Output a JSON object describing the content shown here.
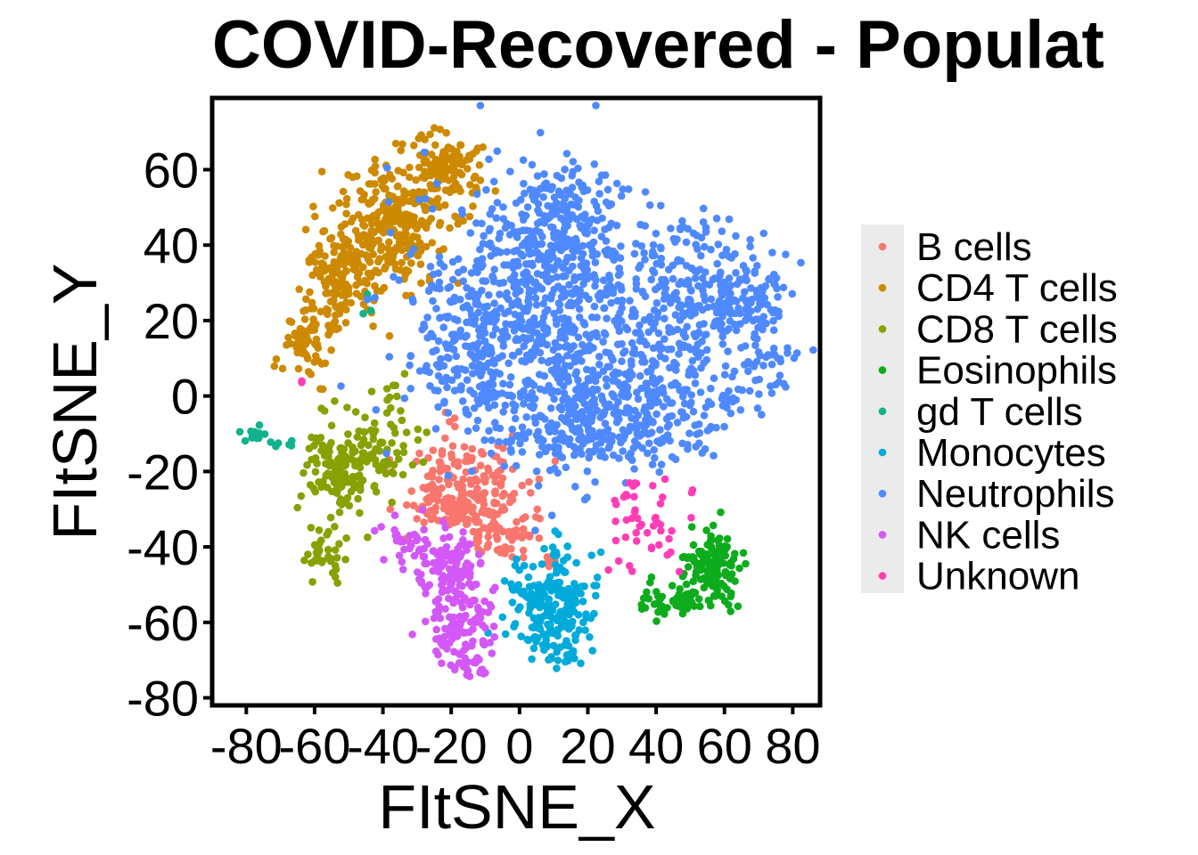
{
  "chart_data": {
    "type": "scatter",
    "title": "COVID-Recovered - Populat",
    "xlabel": "FItSNE_X",
    "ylabel": "FItSNE_Y",
    "xlim": [
      -90,
      88
    ],
    "ylim": [
      -82,
      79
    ],
    "xticks": [
      -80,
      -60,
      -40,
      -20,
      0,
      20,
      40,
      60,
      80
    ],
    "yticks": [
      -80,
      -60,
      -40,
      -20,
      0,
      20,
      40,
      60
    ],
    "xtick_labels": [
      "-80",
      "-60",
      "-40",
      "-20",
      "0",
      "20",
      "40",
      "60",
      "80"
    ],
    "ytick_labels": [
      "-80",
      "-60",
      "-40",
      "-20",
      "0",
      "20",
      "40",
      "60"
    ],
    "grid": false,
    "legend_position": "right",
    "series": [
      {
        "name": "B cells",
        "color": "#F8766D",
        "clusters": [
          {
            "x": -16,
            "y": -25,
            "sx": 9,
            "sy": 6,
            "n": 200
          },
          {
            "x": -5,
            "y": -37,
            "sx": 5,
            "sy": 3,
            "n": 55
          },
          {
            "x": -23,
            "y": -30,
            "sx": 4,
            "sy": 2.5,
            "n": 30
          },
          {
            "x": 10,
            "y": -44,
            "sx": 2,
            "sy": 1.5,
            "n": 6
          },
          {
            "x": -22,
            "y": -7,
            "sx": 2,
            "sy": 1,
            "n": 4
          }
        ]
      },
      {
        "name": "CD4 T cells",
        "color": "#CD8A00",
        "clusters": [
          {
            "x": -37,
            "y": 46,
            "sx": 8,
            "sy": 8,
            "n": 260
          },
          {
            "x": -22,
            "y": 60,
            "sx": 6,
            "sy": 5,
            "n": 110
          },
          {
            "x": -52,
            "y": 32,
            "sx": 6,
            "sy": 7,
            "n": 150
          },
          {
            "x": -62,
            "y": 15,
            "sx": 4,
            "sy": 6,
            "n": 70
          }
        ]
      },
      {
        "name": "CD8 T cells",
        "color": "#86A200",
        "clusters": [
          {
            "x": -53,
            "y": -20,
            "sx": 5,
            "sy": 6,
            "n": 130
          },
          {
            "x": -40,
            "y": -14,
            "sx": 6,
            "sy": 4,
            "n": 60
          },
          {
            "x": -57,
            "y": -42,
            "sx": 3,
            "sy": 3.5,
            "n": 40
          },
          {
            "x": -37,
            "y": -2,
            "sx": 2,
            "sy": 3,
            "n": 12
          }
        ]
      },
      {
        "name": "Eosinophils",
        "color": "#0DAC1C",
        "clusters": [
          {
            "x": 57,
            "y": -45,
            "sx": 4,
            "sy": 5,
            "n": 130
          },
          {
            "x": 46,
            "y": -54,
            "sx": 6,
            "sy": 2.5,
            "n": 60
          }
        ]
      },
      {
        "name": "gd T cells",
        "color": "#11B28C",
        "clusters": [
          {
            "x": -77,
            "y": -10,
            "sx": 2,
            "sy": 1.5,
            "n": 12
          },
          {
            "x": -70,
            "y": -13,
            "sx": 2,
            "sy": 2,
            "n": 5
          },
          {
            "x": -45,
            "y": 24,
            "sx": 1.5,
            "sy": 2,
            "n": 4
          }
        ]
      },
      {
        "name": "Monocytes",
        "color": "#00ABDB",
        "clusters": [
          {
            "x": 10,
            "y": -55,
            "sx": 7,
            "sy": 6,
            "n": 170
          },
          {
            "x": 12,
            "y": -67,
            "sx": 5,
            "sy": 2.5,
            "n": 40
          },
          {
            "x": 12,
            "y": -38,
            "sx": 1.5,
            "sy": 3,
            "n": 10
          }
        ]
      },
      {
        "name": "Neutrophils",
        "color": "#4F89FF",
        "clusters": [
          {
            "x": 10,
            "y": 20,
            "sx": 18,
            "sy": 18,
            "n": 700
          },
          {
            "x": 12,
            "y": 45,
            "sx": 9,
            "sy": 8,
            "n": 180
          },
          {
            "x": 55,
            "y": 25,
            "sx": 11,
            "sy": 10,
            "n": 260
          },
          {
            "x": 42,
            "y": 0,
            "sx": 12,
            "sy": 8,
            "n": 180
          },
          {
            "x": -15,
            "y": 10,
            "sx": 10,
            "sy": 10,
            "n": 180
          },
          {
            "x": 22,
            "y": -8,
            "sx": 12,
            "sy": 7,
            "n": 180
          },
          {
            "x": 72,
            "y": 10,
            "sx": 4,
            "sy": 10,
            "n": 50
          },
          {
            "x": 68,
            "y": 28,
            "sx": 4,
            "sy": 4,
            "n": 30
          }
        ]
      },
      {
        "name": "NK cells",
        "color": "#D358F7",
        "clusters": [
          {
            "x": -21,
            "y": -46,
            "sx": 5,
            "sy": 5,
            "n": 110
          },
          {
            "x": -17,
            "y": -62,
            "sx": 6,
            "sy": 6,
            "n": 100
          },
          {
            "x": -35,
            "y": -38,
            "sx": 4,
            "sy": 2.5,
            "n": 25
          },
          {
            "x": -13,
            "y": -72,
            "sx": 3,
            "sy": 1.5,
            "n": 15
          }
        ]
      },
      {
        "name": "Unknown",
        "color": "#FF3EB6",
        "clusters": [
          {
            "x": 40,
            "y": -34,
            "sx": 7,
            "sy": 6,
            "n": 40
          },
          {
            "x": 33,
            "y": -25,
            "sx": 3,
            "sy": 2,
            "n": 8
          },
          {
            "x": -64,
            "y": 3,
            "sx": 1,
            "sy": 1,
            "n": 2
          }
        ]
      }
    ]
  }
}
